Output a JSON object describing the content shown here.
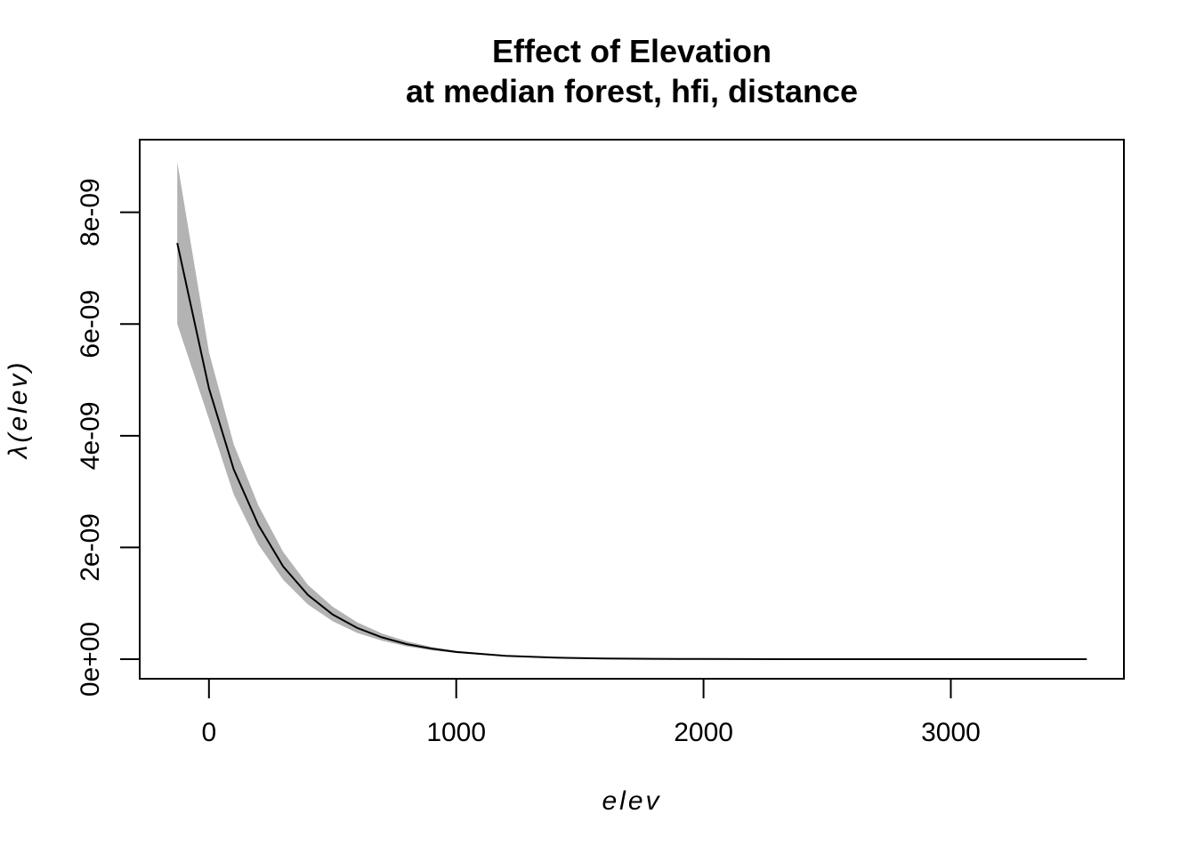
{
  "chart_data": {
    "type": "area",
    "title": "Effect of Elevation",
    "subtitle": "at median forest, hfi, distance",
    "xlabel": "elev",
    "ylabel": "λ(elev)",
    "xlim": [
      -280,
      3700
    ],
    "ylim": [
      -3.5e-10,
      9.3e-09
    ],
    "x_ticks": [
      0,
      1000,
      2000,
      3000
    ],
    "x_tick_labels": [
      "0",
      "1000",
      "2000",
      "3000"
    ],
    "y_ticks": [
      0,
      2e-09,
      4e-09,
      6e-09,
      8e-09
    ],
    "y_tick_labels": [
      "0e+00",
      "2e-09",
      "4e-09",
      "6e-09",
      "8e-09"
    ],
    "grid": false,
    "legend": "none",
    "series": [
      {
        "role": "estimate",
        "color": "#000000",
        "x": [
          -128,
          0,
          100,
          200,
          300,
          400,
          500,
          600,
          700,
          800,
          900,
          1000,
          1200,
          1400,
          1600,
          1800,
          2000,
          2500,
          3000,
          3550
        ],
        "y": [
          7.45e-09,
          4.85e-09,
          3.4e-09,
          2.4e-09,
          1.66e-09,
          1.15e-09,
          8e-10,
          5.6e-10,
          3.9e-10,
          2.7e-10,
          1.9e-10,
          1.3e-10,
          6e-11,
          2.8e-11,
          1.3e-11,
          6e-12,
          3e-12,
          0,
          0,
          0
        ]
      },
      {
        "role": "confidence-band",
        "color": "#b3b3b3",
        "x": [
          -128,
          0,
          100,
          200,
          300,
          400,
          500,
          600,
          700,
          800,
          900,
          1000,
          1200,
          1400,
          1600,
          1800,
          2000,
          2500,
          3000,
          3550
        ],
        "lower": [
          6e-09,
          4.3e-09,
          2.95e-09,
          2.05e-09,
          1.42e-09,
          9.8e-10,
          6.8e-10,
          4.7e-10,
          3.3e-10,
          2.3e-10,
          1.6e-10,
          1.1e-10,
          5e-11,
          2.3e-11,
          1.1e-11,
          5e-12,
          2e-12,
          0,
          0,
          0
        ],
        "upper": [
          8.9e-09,
          5.5e-09,
          3.85e-09,
          2.75e-09,
          1.92e-09,
          1.33e-09,
          9.4e-10,
          6.6e-10,
          4.6e-10,
          3.2e-10,
          2.2e-10,
          1.5e-10,
          7e-11,
          3.3e-11,
          1.5e-11,
          7e-12,
          3.5e-12,
          0,
          0,
          0
        ]
      }
    ]
  }
}
